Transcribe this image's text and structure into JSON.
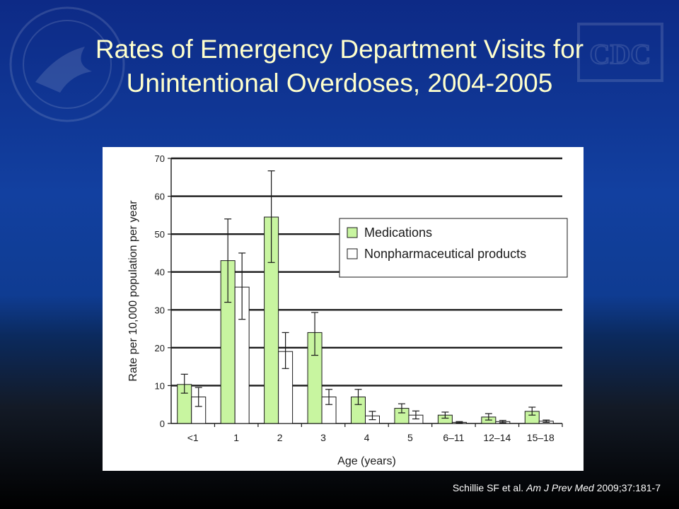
{
  "slide": {
    "title_line1": "Rates of Emergency Department Visits for",
    "title_line2": "Unintentional Overdoses, 2004-2005",
    "citation_authors": "Schillie SF et al.",
    "citation_journal": "Am J Prev Med",
    "citation_ref": "2009;37:181-7",
    "watermark_left": "department-of-health-and-human-services-seal",
    "watermark_right": "CDC"
  },
  "colors": {
    "background_top": "#0d2a86",
    "background_bottom": "#000000",
    "title": "#ffffcc",
    "medications": "#c8f5a0",
    "nonpharmaceutical": "#ffffff"
  },
  "chart_data": {
    "type": "bar",
    "xlabel": "Age (years)",
    "ylabel": "Rate per 10,000 population per year",
    "ylim": [
      0,
      70
    ],
    "yticks": [
      0,
      10,
      20,
      30,
      40,
      50,
      60,
      70
    ],
    "grid": true,
    "legend_position": "right",
    "categories": [
      "<1",
      "1",
      "2",
      "3",
      "4",
      "5",
      "6–11",
      "12–14",
      "15–18"
    ],
    "series": [
      {
        "name": "Medications",
        "color": "#c8f5a0",
        "values": [
          10.3,
          43.0,
          54.5,
          24.0,
          7.0,
          4.0,
          2.2,
          1.7,
          3.2
        ],
        "error_low": [
          8.0,
          32.0,
          42.5,
          18.0,
          5.0,
          2.8,
          1.4,
          0.9,
          2.2
        ],
        "error_high": [
          13.0,
          54.0,
          66.7,
          29.3,
          9.0,
          5.2,
          3.0,
          2.6,
          4.3
        ]
      },
      {
        "name": "Nonpharmaceutical products",
        "color": "#ffffff",
        "values": [
          7.0,
          36.0,
          19.0,
          7.0,
          2.0,
          2.2,
          0.3,
          0.5,
          0.6
        ],
        "error_low": [
          4.5,
          27.5,
          14.5,
          5.0,
          1.0,
          1.2,
          0.1,
          0.2,
          0.3
        ],
        "error_high": [
          9.5,
          45.0,
          24.0,
          9.0,
          3.2,
          3.3,
          0.5,
          0.8,
          0.9
        ]
      }
    ]
  }
}
